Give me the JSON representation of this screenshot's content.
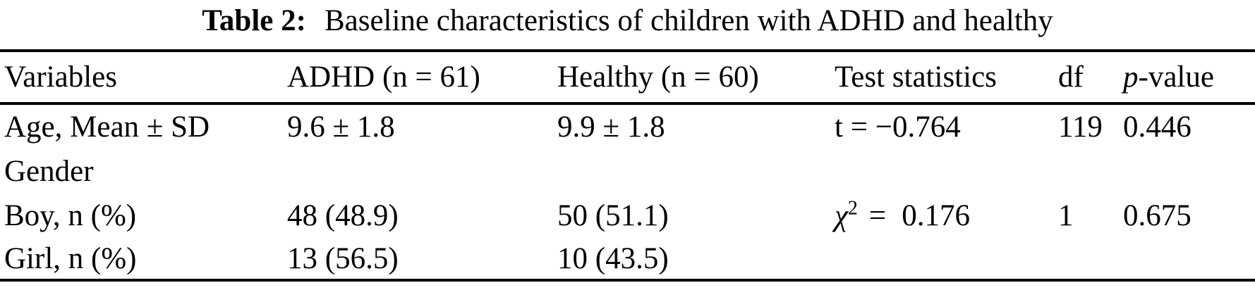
{
  "caption": {
    "label": "Table 2:",
    "text": "Baseline characteristics of children with ADHD and healthy"
  },
  "header": {
    "variables": "Variables",
    "adhd": "ADHD (n = 61)",
    "healthy": "Healthy (n = 60)",
    "test": "Test statistics",
    "df": "df",
    "p_italic": "p",
    "p_rest": "-value"
  },
  "rows": {
    "age": {
      "variable": "Age, Mean ± SD",
      "adhd": "9.6 ± 1.8",
      "healthy": "9.9 ± 1.8",
      "test": "t = −0.764",
      "df": "119",
      "p": "0.446"
    },
    "gender": {
      "variable": "Gender"
    },
    "boy": {
      "variable": "Boy, n (%)",
      "adhd": "48 (48.9)",
      "healthy": "50 (51.1)",
      "test_symbol": "χ",
      "test_sup": "2",
      "test_eq": "=",
      "test_value": "0.176",
      "df": "1",
      "p": "0.675"
    },
    "girl": {
      "variable": "Girl, n (%)",
      "adhd": "13 (56.5)",
      "healthy": "10 (43.5)"
    }
  }
}
